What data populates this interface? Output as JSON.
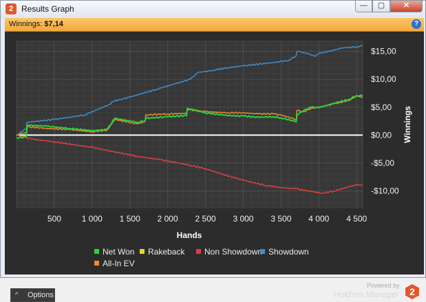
{
  "window": {
    "title": "Results Graph",
    "app_icon": "2",
    "min": "—",
    "max": "▢",
    "close": "✕"
  },
  "winnings_bar": {
    "label": "Winnings:",
    "value": "$7,14",
    "help": "?"
  },
  "chart_data": {
    "type": "line",
    "xlabel": "Hands",
    "ylabel": "Winnings",
    "xlim": [
      0,
      4580
    ],
    "ylim": [
      -13,
      16.8
    ],
    "x_ticks": [
      500,
      1000,
      1500,
      2000,
      2500,
      3000,
      3500,
      4000,
      4500
    ],
    "x_tick_labels": [
      "500",
      "1 000",
      "1 500",
      "2 000",
      "2 500",
      "3 000",
      "3 500",
      "4 000",
      "4 500"
    ],
    "y_ticks": [
      15,
      10,
      5,
      0,
      -5,
      -10
    ],
    "y_tick_labels": [
      "$15,00",
      "$10,00",
      "$5,00",
      "$0,00",
      "-$5,00",
      "-$10,00"
    ],
    "grid": true,
    "legend_position": "bottom",
    "series": [
      {
        "name": "Showdown",
        "color": "#3c8fd0",
        "x": [
          0,
          130,
          140,
          500,
          900,
          1250,
          1260,
          1500,
          1850,
          2100,
          2300,
          2400,
          2600,
          2800,
          3000,
          3400,
          3600,
          3700,
          3710,
          3800,
          3850,
          3950,
          4000,
          4200,
          4300,
          4500,
          4580
        ],
        "y": [
          0,
          1.2,
          2.3,
          2.8,
          3.6,
          5.6,
          6.0,
          6.8,
          8.2,
          9.2,
          10.0,
          11.2,
          11.6,
          12.1,
          12.4,
          13.0,
          13.4,
          14.2,
          15.0,
          14.8,
          14.6,
          14.1,
          14.6,
          15.2,
          15.6,
          15.8,
          16.0
        ]
      },
      {
        "name": "Non Showdown",
        "color": "#e04040",
        "x": [
          0,
          100,
          200,
          500,
          800,
          1000,
          1300,
          1600,
          1900,
          2100,
          2300,
          2500,
          2700,
          2900,
          3100,
          3300,
          3500,
          3700,
          3900,
          4050,
          4200,
          4350,
          4500,
          4580
        ],
        "y": [
          0,
          -0.4,
          -0.7,
          -1.2,
          -1.8,
          -2.2,
          -3.0,
          -3.8,
          -4.4,
          -4.9,
          -5.4,
          -6.0,
          -6.9,
          -7.7,
          -8.4,
          -9.0,
          -9.4,
          -9.6,
          -10.1,
          -10.4,
          -10.0,
          -9.4,
          -8.9,
          -9.0
        ]
      },
      {
        "name": "All-In EV",
        "color": "#f08a2a",
        "x": [
          0,
          130,
          140,
          400,
          700,
          1000,
          1200,
          1300,
          1600,
          1700,
          1710,
          2000,
          2250,
          2260,
          2500,
          2800,
          3000,
          3200,
          3400,
          3500,
          3700,
          3710,
          3800,
          3900,
          4000,
          4200,
          4400,
          4500,
          4580
        ],
        "y": [
          0,
          0.5,
          1.5,
          1.2,
          1.0,
          0.6,
          0.9,
          2.8,
          2.0,
          2.4,
          3.6,
          3.8,
          3.9,
          4.6,
          4.2,
          4.0,
          4.0,
          3.8,
          3.8,
          3.6,
          2.8,
          4.4,
          4.2,
          4.8,
          5.0,
          5.6,
          6.2,
          7.0,
          6.8
        ]
      },
      {
        "name": "Rakeback",
        "color": "#e6d820",
        "x": [
          0,
          4580
        ],
        "y": [
          0,
          0
        ]
      },
      {
        "name": "Net Won",
        "color": "#27d43c",
        "x": [
          0,
          130,
          140,
          400,
          700,
          1000,
          1200,
          1300,
          1600,
          1700,
          1710,
          2000,
          2250,
          2260,
          2500,
          2800,
          3000,
          3200,
          3400,
          3500,
          3700,
          3710,
          3800,
          3900,
          4000,
          4200,
          4400,
          4500,
          4580
        ],
        "y": [
          -0.5,
          -0.3,
          1.8,
          1.6,
          1.2,
          0.8,
          1.0,
          3.0,
          2.3,
          2.6,
          3.0,
          3.3,
          3.5,
          4.8,
          4.0,
          3.5,
          3.4,
          3.2,
          3.3,
          3.1,
          2.4,
          3.6,
          4.4,
          5.0,
          4.9,
          5.7,
          6.4,
          7.1,
          7.0
        ]
      }
    ]
  },
  "legend": [
    {
      "label": "Net Won",
      "color": "#27d43c"
    },
    {
      "label": "Rakeback",
      "color": "#e6d820"
    },
    {
      "label": "Non Showdown",
      "color": "#e04040"
    },
    {
      "label": "Showdown",
      "color": "#3c8fd0"
    },
    {
      "label": "All-In EV",
      "color": "#f08a2a"
    }
  ],
  "options": {
    "chevron": "^",
    "label": "Options"
  },
  "branding": {
    "powered": "Powered by",
    "name": "Hold'em Manager",
    "logo": "2"
  }
}
